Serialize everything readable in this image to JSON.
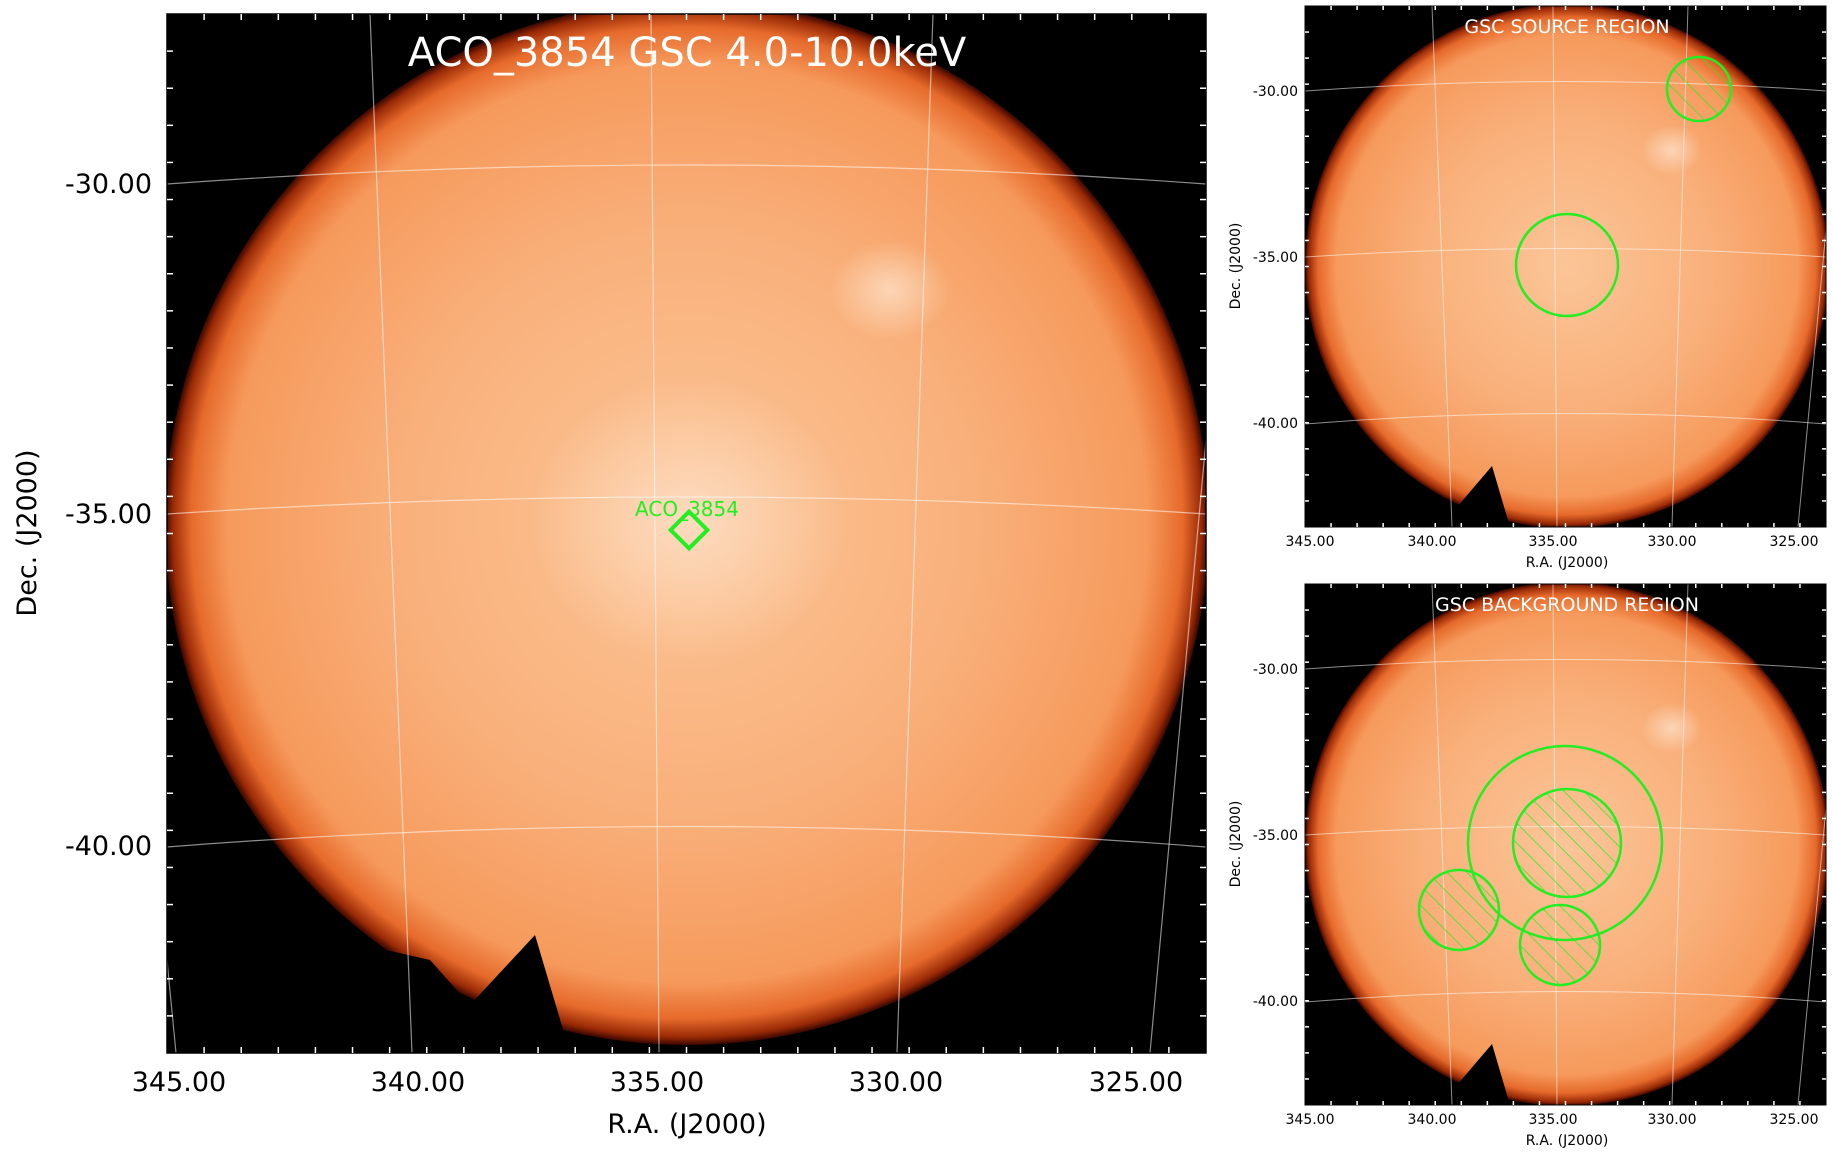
{
  "main_panel": {
    "title": "ACO_3854 GSC 4.0-10.0keV",
    "source_label": "ACO_3854",
    "x_axis_label": "R.A. (J2000)",
    "y_axis_label": "Dec. (J2000)",
    "x_ticks": [
      "345.00",
      "340.00",
      "335.00",
      "330.00",
      "325.00"
    ],
    "y_ticks": [
      "-30.00",
      "-35.00",
      "-40.00"
    ]
  },
  "source_panel": {
    "title": "GSC SOURCE REGION",
    "x_axis_label": "R.A. (J2000)",
    "y_axis_label": "Dec. (J2000)",
    "x_ticks": [
      "345.00",
      "340.00",
      "335.00",
      "330.00",
      "325.00"
    ],
    "y_ticks": [
      "-30.00",
      "-35.00",
      "-40.00"
    ]
  },
  "background_panel": {
    "title": "GSC BACKGROUND REGION",
    "x_axis_label": "R.A. (J2000)",
    "y_axis_label": "Dec. (J2000)",
    "x_ticks": [
      "345.00",
      "340.00",
      "335.00",
      "330.00",
      "325.00"
    ],
    "y_ticks": [
      "-30.00",
      "-35.00",
      "-40.00"
    ]
  },
  "colors": {
    "image_fill": "#f8a467",
    "image_edge": "#7a1500",
    "region": "#22ee22",
    "grid": "#ffffff",
    "background": "#000000"
  }
}
